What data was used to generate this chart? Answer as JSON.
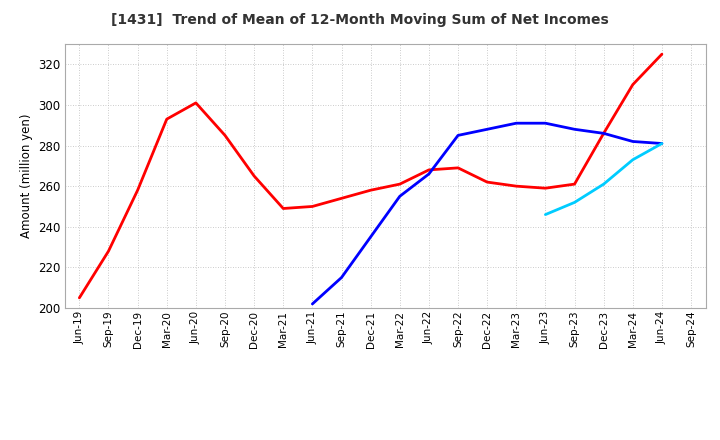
{
  "title": "[1431]  Trend of Mean of 12-Month Moving Sum of Net Incomes",
  "ylabel": "Amount (million yen)",
  "ylim": [
    200,
    330
  ],
  "yticks": [
    200,
    220,
    240,
    260,
    280,
    300,
    320
  ],
  "background_color": "#ffffff",
  "grid_color": "#aaaaaa",
  "series": {
    "3 Years": {
      "color": "#ff0000",
      "x": [
        "Jun-19",
        "Sep-19",
        "Dec-19",
        "Mar-20",
        "Jun-20",
        "Sep-20",
        "Dec-20",
        "Mar-21",
        "Jun-21",
        "Sep-21",
        "Dec-21",
        "Mar-22",
        "Jun-22",
        "Sep-22",
        "Dec-22",
        "Mar-23",
        "Jun-23",
        "Sep-23",
        "Dec-23",
        "Mar-24",
        "Jun-24"
      ],
      "y": [
        205,
        228,
        258,
        293,
        301,
        285,
        265,
        249,
        250,
        254,
        258,
        261,
        268,
        269,
        262,
        260,
        259,
        261,
        286,
        310,
        325
      ]
    },
    "5 Years": {
      "color": "#0000ff",
      "x": [
        "Jun-21",
        "Sep-21",
        "Dec-21",
        "Mar-22",
        "Jun-22",
        "Sep-22",
        "Dec-22",
        "Mar-23",
        "Jun-23",
        "Sep-23",
        "Dec-23",
        "Mar-24",
        "Jun-24"
      ],
      "y": [
        202,
        215,
        235,
        255,
        266,
        285,
        288,
        291,
        291,
        288,
        286,
        282,
        281
      ]
    },
    "7 Years": {
      "color": "#00ccff",
      "x": [
        "Jun-23",
        "Sep-23",
        "Dec-23",
        "Mar-24",
        "Jun-24"
      ],
      "y": [
        246,
        252,
        261,
        273,
        281
      ]
    },
    "10 Years": {
      "color": "#008000",
      "x": [],
      "y": []
    }
  },
  "xtick_labels": [
    "Jun-19",
    "Sep-19",
    "Dec-19",
    "Mar-20",
    "Jun-20",
    "Sep-20",
    "Dec-20",
    "Mar-21",
    "Jun-21",
    "Sep-21",
    "Dec-21",
    "Mar-22",
    "Jun-22",
    "Sep-22",
    "Dec-22",
    "Mar-23",
    "Jun-23",
    "Sep-23",
    "Dec-23",
    "Mar-24",
    "Jun-24",
    "Sep-24"
  ]
}
